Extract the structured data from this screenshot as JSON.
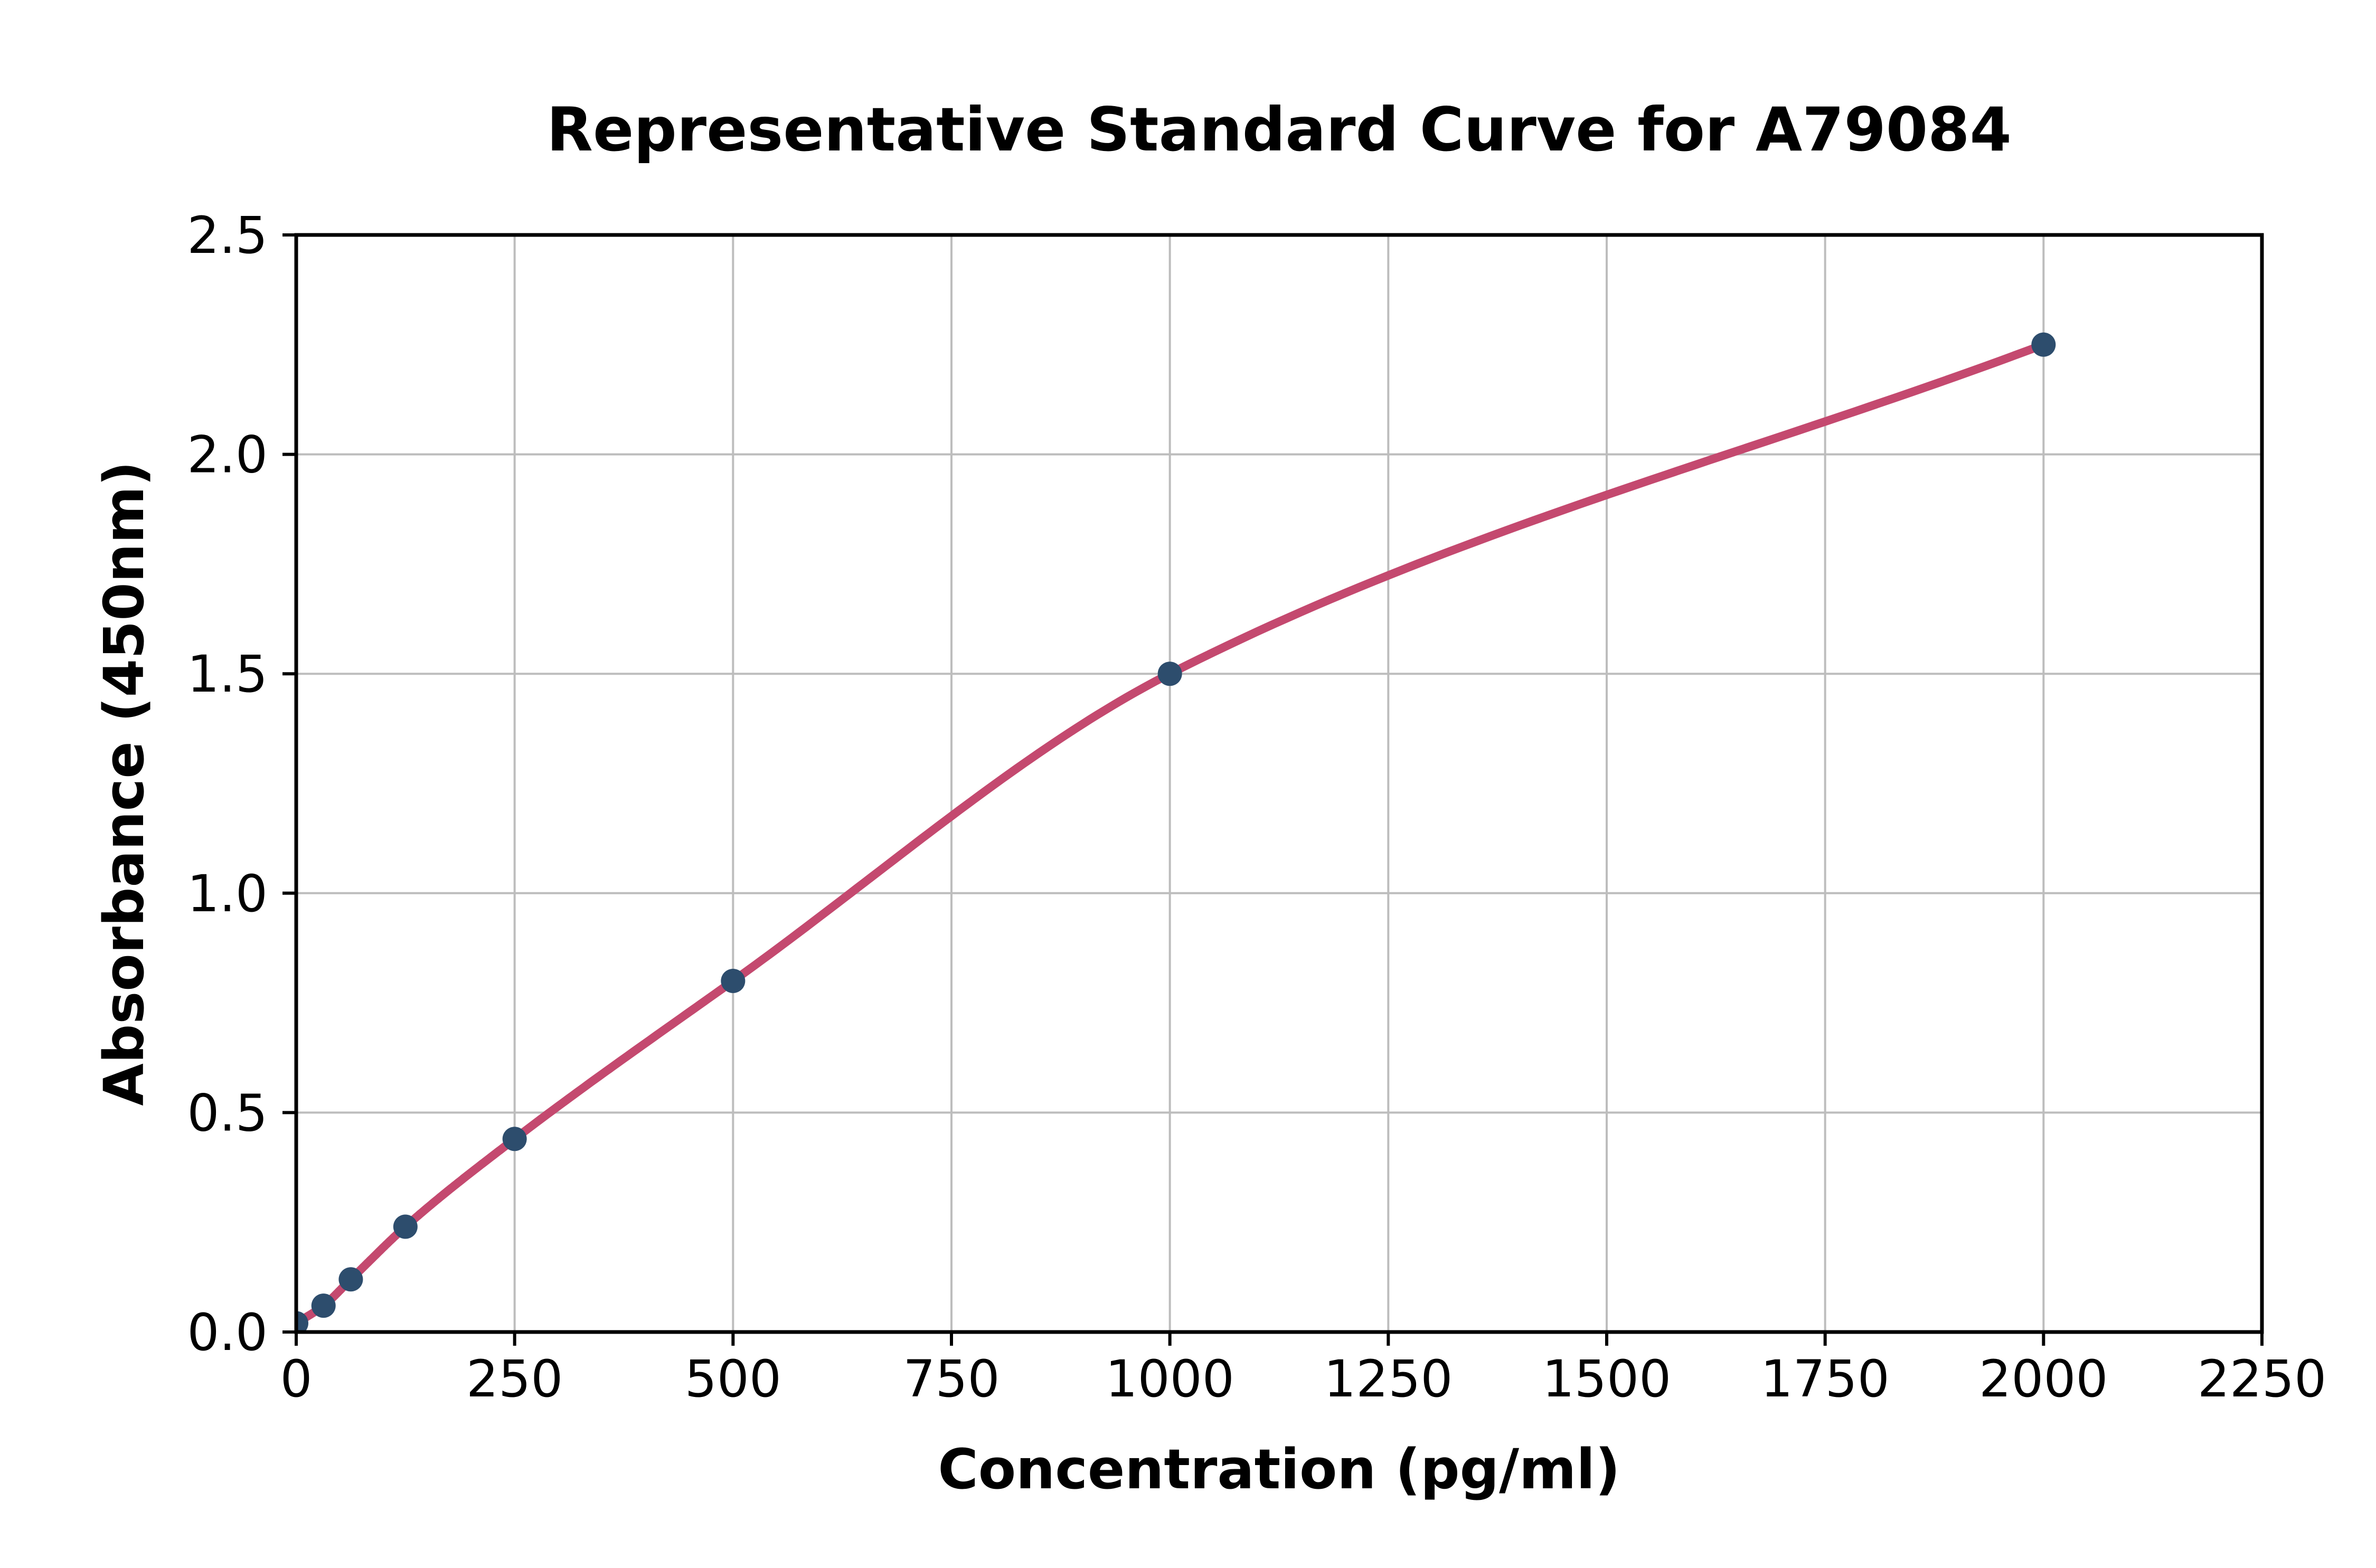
{
  "title": "Representative Standard Curve for A79084",
  "chart_data": {
    "type": "scatter",
    "title": "Representative Standard Curve for A79084",
    "xlabel": "Concentration (pg/ml)",
    "ylabel": "Absorbance (450nm)",
    "xlim": [
      0,
      2250
    ],
    "ylim": [
      0,
      2.5
    ],
    "x_ticks": {
      "values": [
        0,
        250,
        500,
        750,
        1000,
        1250,
        1500,
        1750,
        2000,
        2250
      ],
      "labels": [
        "0",
        "250",
        "500",
        "750",
        "1000",
        "1250",
        "1500",
        "1750",
        "2000",
        "2250"
      ]
    },
    "y_ticks": {
      "values": [
        0.0,
        0.5,
        1.0,
        1.5,
        2.0,
        2.5
      ],
      "labels": [
        "0.0",
        "0.5",
        "1.0",
        "1.5",
        "2.0",
        "2.5"
      ]
    },
    "grid": true,
    "legend": false,
    "series": [
      {
        "name": "standard-points",
        "type": "scatter",
        "x": [
          0,
          31.25,
          62.5,
          125,
          250,
          500,
          1000,
          2000
        ],
        "y": [
          0.02,
          0.06,
          0.12,
          0.24,
          0.44,
          0.8,
          1.5,
          2.25
        ]
      },
      {
        "name": "fit-curve",
        "type": "line",
        "through_points": "standard-points"
      }
    ],
    "style": {
      "marker_color": "#2d4d6d",
      "curve_color": "#c4496f",
      "grid_color": "#bdbdbd",
      "axis_color": "#000000",
      "background": "#ffffff"
    }
  }
}
